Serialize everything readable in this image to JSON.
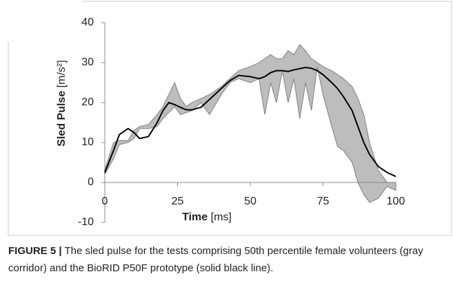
{
  "chart_data": {
    "type": "corridor-line",
    "x": [
      0,
      3,
      5,
      8,
      10,
      12,
      15,
      18,
      20,
      22,
      24,
      26,
      28,
      30,
      33,
      36,
      40,
      43,
      46,
      50,
      53,
      55,
      57,
      59,
      61,
      63,
      65,
      67,
      69,
      71,
      73,
      75,
      78,
      80,
      82,
      85,
      87,
      89,
      91,
      94,
      97,
      100
    ],
    "upper": [
      3,
      10,
      10.5,
      10.5,
      13,
      14,
      14.5,
      17,
      19,
      22,
      25,
      21,
      19,
      20,
      21,
      22,
      24,
      26,
      28,
      29,
      30,
      31,
      32,
      31,
      31,
      33,
      32,
      34.5,
      33,
      31,
      30,
      29,
      28,
      27,
      26,
      24,
      21,
      17,
      10,
      3,
      0,
      0
    ],
    "lower": [
      2,
      6,
      9.5,
      10,
      11,
      13.5,
      13.5,
      14,
      16,
      17.5,
      19,
      17,
      17.5,
      18,
      20,
      17,
      22,
      25,
      26,
      25,
      26,
      17,
      25,
      20,
      28,
      20,
      26,
      16,
      25,
      18,
      29,
      22,
      14,
      9,
      8,
      5,
      0,
      -3,
      -5,
      -4,
      -1,
      -2
    ],
    "values": [
      2.5,
      8,
      12,
      13.5,
      12.5,
      11,
      11.5,
      15,
      18,
      20,
      19.5,
      18.8,
      18.2,
      18.2,
      18.8,
      20.8,
      23.5,
      25.5,
      26.8,
      26.5,
      26,
      26.5,
      27.5,
      28,
      28,
      27.8,
      28.2,
      28.5,
      28.8,
      28.6,
      28,
      27,
      25,
      23.5,
      21.5,
      18,
      14,
      10,
      7,
      4,
      2.5,
      1.5
    ],
    "corridor_color": "#bdbdbd",
    "corridor_edge": "#8c8c8c",
    "line_color": "#000000",
    "xlim": [
      0,
      100
    ],
    "xticks": [
      0,
      25,
      50,
      75,
      100
    ],
    "ylim": [
      -10,
      40
    ],
    "yticks": [
      -10,
      0,
      10,
      20,
      30,
      40
    ],
    "x_label": "Time",
    "x_unit": "[ms]",
    "y_label": "Sled Pulse",
    "y_unit": "[m/s²]"
  },
  "caption": {
    "label": "FIGURE 5 |",
    "text": "The sled pulse for the tests comprising 50th percentile female volunteers (gray corridor) and the BioRID P50F prototype (solid black line)."
  }
}
